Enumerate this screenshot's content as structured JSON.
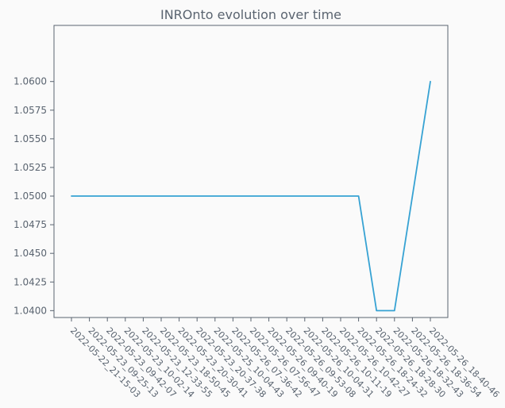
{
  "chart_data": {
    "type": "line",
    "title": "INROnto evolution over time",
    "xlabel": "",
    "ylabel": "",
    "x": [
      "2022-05-22_21-15-03",
      "2022-05-23_09-25-13",
      "2022-05-23_09-42-07",
      "2022-05-23_10-02-14",
      "2022-05-23_12-33-55",
      "2022-05-23_18-50-45",
      "2022-05-23_20-30-41",
      "2022-05-23_20-37-38",
      "2022-05-25_10-04-43",
      "2022-05-26_07-36-42",
      "2022-05-26_07-56-47",
      "2022-05-26_09-40-19",
      "2022-05-26_09-53-08",
      "2022-05-26_10-04-31",
      "2022-05-26_10-11-19",
      "2022-05-26_10-42-27",
      "2022-05-26_18-24-32",
      "2022-05-26_18-28-30",
      "2022-05-26_18-32-43",
      "2022-05-26_18-36-54",
      "2022-05-26_18-40-46"
    ],
    "series": [
      {
        "values": [
          1.05,
          1.05,
          1.05,
          1.05,
          1.05,
          1.05,
          1.05,
          1.05,
          1.05,
          1.05,
          1.05,
          1.05,
          1.05,
          1.05,
          1.05,
          1.05,
          1.05,
          1.04,
          1.04,
          null,
          1.06
        ],
        "color": "#36a2d3"
      }
    ],
    "yticks": [
      "1.0400",
      "1.0425",
      "1.0450",
      "1.0475",
      "1.0500",
      "1.0525",
      "1.0550",
      "1.0575",
      "1.0600"
    ],
    "ylim": [
      1.0394,
      1.0649
    ],
    "grid": false,
    "legend": "none",
    "axis_color": "#5a6470"
  }
}
